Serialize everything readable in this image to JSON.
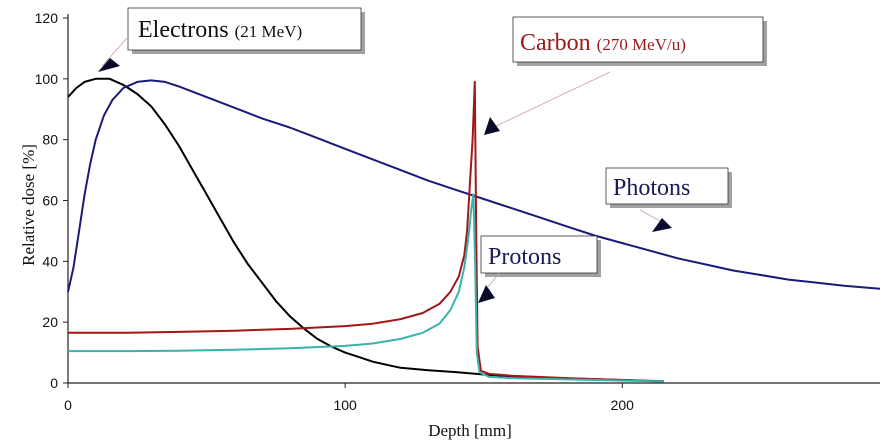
{
  "chart_data": {
    "type": "line",
    "xlabel": "Depth [mm]",
    "ylabel": "Relative dose [%]",
    "xlim": [
      0,
      293
    ],
    "ylim": [
      0,
      120
    ],
    "x_ticks": [
      0,
      100,
      200
    ],
    "y_ticks": [
      0,
      20,
      40,
      60,
      80,
      100,
      120
    ],
    "grid": false,
    "legend": "none",
    "series": [
      {
        "name": "Electrons",
        "color": "#000000",
        "points": [
          [
            0,
            94
          ],
          [
            3,
            97
          ],
          [
            6,
            99
          ],
          [
            10,
            100
          ],
          [
            15,
            100
          ],
          [
            20,
            98
          ],
          [
            25,
            95
          ],
          [
            30,
            91
          ],
          [
            35,
            85
          ],
          [
            40,
            78
          ],
          [
            45,
            70
          ],
          [
            50,
            62
          ],
          [
            55,
            54
          ],
          [
            60,
            46
          ],
          [
            65,
            39
          ],
          [
            70,
            33
          ],
          [
            75,
            27
          ],
          [
            80,
            22
          ],
          [
            85,
            18
          ],
          [
            90,
            14.5
          ],
          [
            95,
            12
          ],
          [
            100,
            10
          ],
          [
            105,
            8.5
          ],
          [
            110,
            7
          ],
          [
            115,
            6
          ],
          [
            120,
            5
          ],
          [
            130,
            4.2
          ],
          [
            140,
            3.6
          ],
          [
            150,
            2.8
          ],
          [
            160,
            2.2
          ],
          [
            180,
            1.5
          ],
          [
            200,
            1
          ],
          [
            215,
            0.5
          ]
        ]
      },
      {
        "name": "Photons",
        "color": "#1a1a7a",
        "points": [
          [
            0,
            30
          ],
          [
            2,
            38
          ],
          [
            4,
            50
          ],
          [
            6,
            62
          ],
          [
            8,
            72
          ],
          [
            10,
            80
          ],
          [
            13,
            88
          ],
          [
            16,
            93
          ],
          [
            20,
            97
          ],
          [
            25,
            99
          ],
          [
            30,
            99.5
          ],
          [
            35,
            99
          ],
          [
            40,
            97.5
          ],
          [
            50,
            94
          ],
          [
            60,
            90.5
          ],
          [
            70,
            87
          ],
          [
            80,
            84
          ],
          [
            90,
            80.5
          ],
          [
            100,
            77
          ],
          [
            110,
            73.5
          ],
          [
            120,
            70
          ],
          [
            130,
            66.5
          ],
          [
            140,
            63.5
          ],
          [
            150,
            60.5
          ],
          [
            160,
            57.5
          ],
          [
            170,
            54.5
          ],
          [
            180,
            51.5
          ],
          [
            190,
            48.5
          ],
          [
            200,
            46
          ],
          [
            210,
            43.5
          ],
          [
            220,
            41
          ],
          [
            230,
            39
          ],
          [
            240,
            37
          ],
          [
            250,
            35.5
          ],
          [
            260,
            34
          ],
          [
            270,
            33
          ],
          [
            280,
            32
          ],
          [
            293,
            31
          ]
        ]
      },
      {
        "name": "Carbon",
        "color": "#a01818",
        "points": [
          [
            0,
            16.5
          ],
          [
            20,
            16.5
          ],
          [
            40,
            16.8
          ],
          [
            60,
            17.2
          ],
          [
            80,
            17.8
          ],
          [
            100,
            18.7
          ],
          [
            110,
            19.5
          ],
          [
            120,
            21
          ],
          [
            128,
            23
          ],
          [
            134,
            26
          ],
          [
            138,
            30
          ],
          [
            141,
            35
          ],
          [
            143,
            42
          ],
          [
            144,
            50
          ],
          [
            145,
            65
          ],
          [
            146,
            80
          ],
          [
            146.8,
            99
          ],
          [
            147.3,
            50
          ],
          [
            147.8,
            12
          ],
          [
            149,
            4
          ],
          [
            152,
            3
          ],
          [
            160,
            2.4
          ],
          [
            180,
            1.6
          ],
          [
            200,
            1
          ],
          [
            215,
            0.6
          ]
        ]
      },
      {
        "name": "Protons",
        "color": "#3ab3ad",
        "points": [
          [
            0,
            10.5
          ],
          [
            20,
            10.5
          ],
          [
            40,
            10.6
          ],
          [
            60,
            10.9
          ],
          [
            80,
            11.4
          ],
          [
            100,
            12.2
          ],
          [
            110,
            13
          ],
          [
            120,
            14.5
          ],
          [
            128,
            16.5
          ],
          [
            134,
            19.5
          ],
          [
            138,
            24
          ],
          [
            141,
            30
          ],
          [
            143,
            38
          ],
          [
            144.5,
            48
          ],
          [
            145.5,
            57
          ],
          [
            146.3,
            62
          ],
          [
            146.9,
            40
          ],
          [
            147.5,
            10
          ],
          [
            148.5,
            3.5
          ],
          [
            152,
            2
          ],
          [
            160,
            1.6
          ],
          [
            180,
            1.2
          ],
          [
            200,
            0.8
          ],
          [
            215,
            0.5
          ]
        ]
      }
    ],
    "annotations": [
      {
        "name": "electrons",
        "main": "Electrons",
        "small": "(21 MeV)",
        "color": "#111111"
      },
      {
        "name": "carbon",
        "main": "Carbon",
        "small": "(270 MeV/u)",
        "color": "#9a1a1a"
      },
      {
        "name": "photons",
        "main": "Photons",
        "small": "",
        "color": "#1a1a5a"
      },
      {
        "name": "protons",
        "main": "Protons",
        "small": "",
        "color": "#1a1a5a"
      }
    ]
  }
}
